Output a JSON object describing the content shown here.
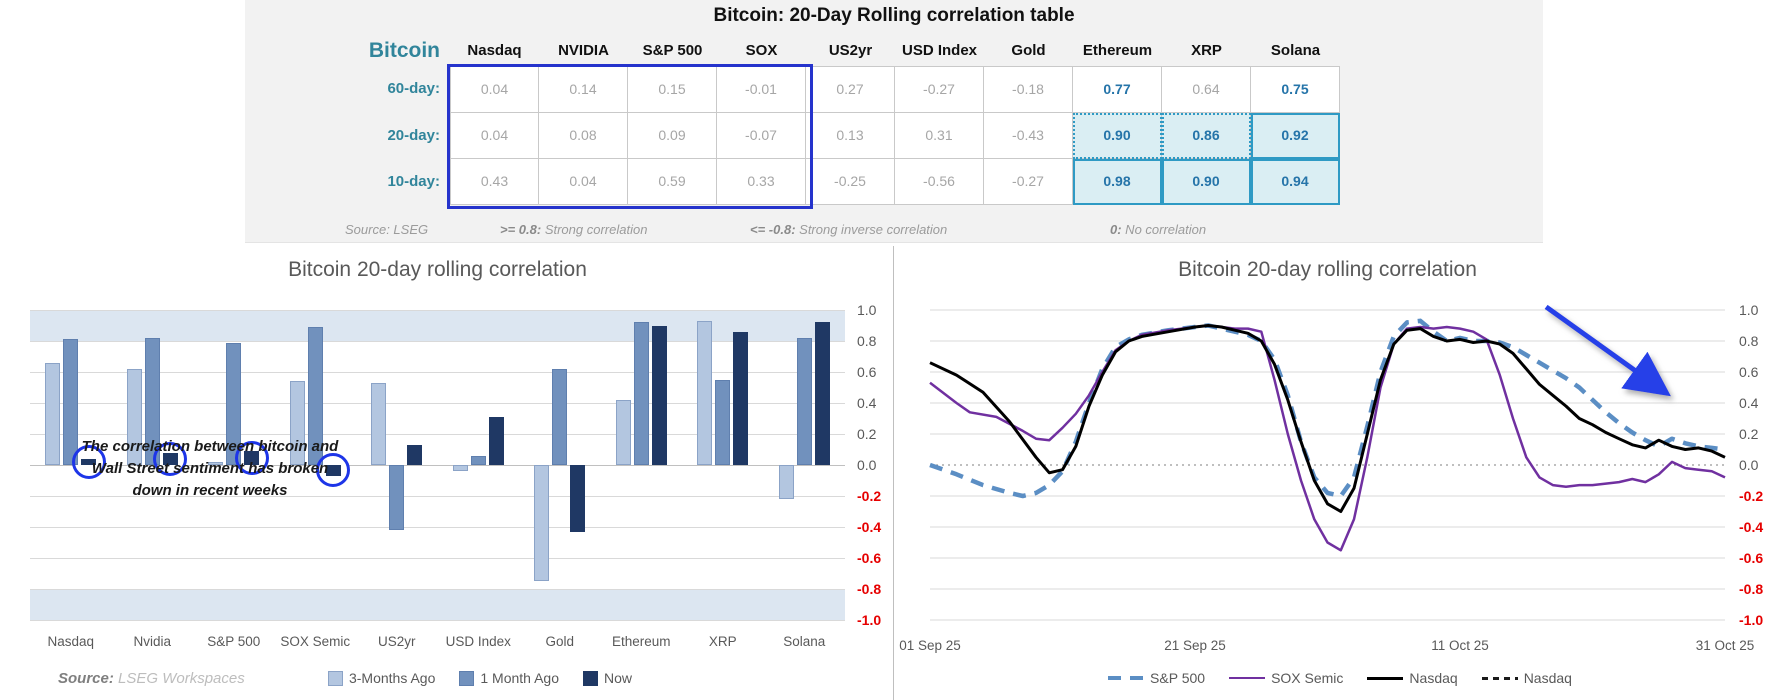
{
  "colors": {
    "panel_bg": "#f2f2f2",
    "teal_header": "#31859b",
    "value_gray": "#a6a6a6",
    "value_blue": "#2574a9",
    "highlight_fill": "#daeef3",
    "highlight_border": "#2e9ac4",
    "blue_box": "#2533cc",
    "band_fill": "#dce6f1",
    "gridline": "#d9d9d9",
    "axis_text": "#595959",
    "negative_red": "#e60000",
    "circle_blue": "#1d35e8",
    "arrow_blue": "#2540e8"
  },
  "table": {
    "title": "Bitcoin: 20-Day Rolling correlation table",
    "corner_label": "Bitcoin",
    "columns": [
      "Nasdaq",
      "NVIDIA",
      "S&P 500",
      "SOX",
      "US2yr",
      "USD Index",
      "Gold",
      "Ethereum",
      "XRP",
      "Solana"
    ],
    "crypto_start_index": 7,
    "rows": [
      {
        "label": "60-day:",
        "values": [
          "0.04",
          "0.14",
          "0.15",
          "-0.01",
          "0.27",
          "-0.27",
          "-0.18",
          "0.77",
          "0.64",
          "0.75"
        ]
      },
      {
        "label": "20-day:",
        "values": [
          "0.04",
          "0.08",
          "0.09",
          "-0.07",
          "0.13",
          "0.31",
          "-0.43",
          "0.90",
          "0.86",
          "0.92"
        ]
      },
      {
        "label": "10-day:",
        "values": [
          "0.43",
          "0.04",
          "0.59",
          "0.33",
          "-0.25",
          "-0.56",
          "-0.27",
          "0.98",
          "0.90",
          "0.94"
        ]
      }
    ],
    "footer": {
      "source": "Source: LSEG",
      "items": [
        {
          "strong": ">= 0.8:",
          "rest": " Strong correlation"
        },
        {
          "strong": "<= -0.8:",
          "rest": " Strong inverse correlation"
        },
        {
          "strong": "0:",
          "rest": " No correlation"
        }
      ]
    }
  },
  "chart_data": [
    {
      "type": "bar",
      "title": "Bitcoin 20-day rolling correlation",
      "categories": [
        "Nasdaq",
        "Nvidia",
        "S&P 500",
        "SOX Semic",
        "US2yr",
        "USD Index",
        "Gold",
        "Ethereum",
        "XRP",
        "Solana"
      ],
      "series": [
        {
          "name": "3-Months Ago",
          "color": "#b3c6e0",
          "border": "#8ba3c7",
          "values": [
            0.66,
            0.62,
            0.02,
            0.54,
            0.53,
            -0.04,
            -0.75,
            0.42,
            0.93,
            -0.22
          ]
        },
        {
          "name": "1 Month Ago",
          "color": "#7191bd",
          "border": "#5f7fae",
          "values": [
            0.81,
            0.82,
            0.79,
            0.89,
            -0.42,
            0.06,
            0.62,
            0.92,
            0.55,
            0.82
          ]
        },
        {
          "name": "Now",
          "color": "#1f3864",
          "border": "#1f3864",
          "values": [
            0.04,
            0.08,
            0.09,
            -0.07,
            0.13,
            0.31,
            -0.43,
            0.9,
            0.86,
            0.92
          ]
        }
      ],
      "ylim": [
        -1,
        1
      ],
      "yticks": [
        "1.0",
        "0.8",
        "0.6",
        "0.4",
        "0.2",
        "0.0",
        "-0.2",
        "-0.4",
        "-0.6",
        "-0.8",
        "-1.0"
      ],
      "band_ranges": [
        [
          0.8,
          1.0
        ],
        [
          -1.0,
          -0.8
        ]
      ],
      "circled_now_groups": [
        0,
        1,
        2,
        3
      ],
      "annotation": [
        "The correlation between bitcoin and",
        "Wall Street sentiment has broken",
        "down in recent weeks"
      ],
      "legend_position": "bottom",
      "source_label": "Source:",
      "source_text": "LSEG Workspaces"
    },
    {
      "type": "line",
      "title": "Bitcoin 20-day rolling correlation",
      "x_axis": {
        "labels": [
          "01 Sep 25",
          "21 Sep 25",
          "11 Oct 25",
          "31 Oct 25"
        ],
        "range_days": [
          0,
          60
        ]
      },
      "ylim": [
        -1,
        1
      ],
      "yticks": [
        "1.0",
        "0.8",
        "0.6",
        "0.4",
        "0.2",
        "0.0",
        "-0.2",
        "-0.4",
        "-0.6",
        "-0.8",
        "-1.0"
      ],
      "zero_line": "dotted",
      "legend_position": "bottom",
      "series": [
        {
          "name": "S&P 500",
          "color": "#5b8ec4",
          "dash": "13 9",
          "width": 4.5,
          "points": [
            [
              0,
              0.0
            ],
            [
              2,
              -0.06
            ],
            [
              4,
              -0.13
            ],
            [
              6,
              -0.18
            ],
            [
              7,
              -0.2
            ],
            [
              8,
              -0.18
            ],
            [
              9,
              -0.13
            ],
            [
              10,
              -0.04
            ],
            [
              11,
              0.15
            ],
            [
              12,
              0.4
            ],
            [
              13,
              0.62
            ],
            [
              14,
              0.76
            ],
            [
              15,
              0.81
            ],
            [
              16,
              0.84
            ],
            [
              18,
              0.87
            ],
            [
              20,
              0.89
            ],
            [
              21,
              0.9
            ],
            [
              22,
              0.88
            ],
            [
              23,
              0.86
            ],
            [
              24,
              0.84
            ],
            [
              25,
              0.8
            ],
            [
              26,
              0.68
            ],
            [
              27,
              0.45
            ],
            [
              28,
              0.15
            ],
            [
              29,
              -0.08
            ],
            [
              30,
              -0.18
            ],
            [
              31,
              -0.2
            ],
            [
              32,
              -0.08
            ],
            [
              33,
              0.25
            ],
            [
              34,
              0.6
            ],
            [
              35,
              0.83
            ],
            [
              36,
              0.92
            ],
            [
              37,
              0.93
            ],
            [
              38,
              0.86
            ],
            [
              39,
              0.8
            ],
            [
              40,
              0.82
            ],
            [
              41,
              0.8
            ],
            [
              42,
              0.8
            ],
            [
              43,
              0.79
            ],
            [
              44,
              0.76
            ],
            [
              45,
              0.71
            ],
            [
              46,
              0.66
            ],
            [
              47,
              0.61
            ],
            [
              48,
              0.56
            ],
            [
              49,
              0.5
            ],
            [
              50,
              0.42
            ],
            [
              51,
              0.34
            ],
            [
              52,
              0.27
            ],
            [
              53,
              0.21
            ],
            [
              54,
              0.16
            ],
            [
              55,
              0.12
            ],
            [
              56,
              0.17
            ],
            [
              57,
              0.14
            ],
            [
              58,
              0.12
            ],
            [
              59,
              0.11
            ],
            [
              60,
              0.1
            ]
          ]
        },
        {
          "name": "SOX Semic",
          "color": "#7030a0",
          "dash": "",
          "width": 2.5,
          "points": [
            [
              0,
              0.53
            ],
            [
              2,
              0.4
            ],
            [
              3,
              0.34
            ],
            [
              5,
              0.31
            ],
            [
              7,
              0.22
            ],
            [
              8,
              0.17
            ],
            [
              9,
              0.16
            ],
            [
              10,
              0.24
            ],
            [
              11,
              0.33
            ],
            [
              12,
              0.45
            ],
            [
              13,
              0.6
            ],
            [
              14,
              0.74
            ],
            [
              15,
              0.8
            ],
            [
              16,
              0.84
            ],
            [
              18,
              0.87
            ],
            [
              20,
              0.89
            ],
            [
              21,
              0.9
            ],
            [
              22,
              0.89
            ],
            [
              23,
              0.88
            ],
            [
              24,
              0.88
            ],
            [
              25,
              0.86
            ],
            [
              26,
              0.55
            ],
            [
              27,
              0.2
            ],
            [
              28,
              -0.1
            ],
            [
              29,
              -0.35
            ],
            [
              30,
              -0.5
            ],
            [
              31,
              -0.55
            ],
            [
              32,
              -0.35
            ],
            [
              33,
              0.05
            ],
            [
              34,
              0.5
            ],
            [
              35,
              0.78
            ],
            [
              36,
              0.88
            ],
            [
              37,
              0.89
            ],
            [
              38,
              0.88
            ],
            [
              39,
              0.89
            ],
            [
              40,
              0.88
            ],
            [
              41,
              0.86
            ],
            [
              42,
              0.81
            ],
            [
              43,
              0.58
            ],
            [
              44,
              0.3
            ],
            [
              45,
              0.05
            ],
            [
              46,
              -0.08
            ],
            [
              47,
              -0.13
            ],
            [
              48,
              -0.14
            ],
            [
              49,
              -0.13
            ],
            [
              50,
              -0.13
            ],
            [
              51,
              -0.12
            ],
            [
              52,
              -0.11
            ],
            [
              53,
              -0.09
            ],
            [
              54,
              -0.11
            ],
            [
              55,
              -0.06
            ],
            [
              56,
              0.02
            ],
            [
              57,
              -0.02
            ],
            [
              58,
              -0.03
            ],
            [
              59,
              -0.04
            ],
            [
              60,
              -0.08
            ]
          ]
        },
        {
          "name": "Nasdaq",
          "color": "#000000",
          "dash": "",
          "width": 3,
          "points": [
            [
              0,
              0.66
            ],
            [
              2,
              0.58
            ],
            [
              4,
              0.47
            ],
            [
              6,
              0.28
            ],
            [
              8,
              0.05
            ],
            [
              9,
              -0.05
            ],
            [
              10,
              -0.03
            ],
            [
              11,
              0.12
            ],
            [
              12,
              0.38
            ],
            [
              13,
              0.58
            ],
            [
              14,
              0.73
            ],
            [
              15,
              0.8
            ],
            [
              16,
              0.83
            ],
            [
              18,
              0.86
            ],
            [
              20,
              0.89
            ],
            [
              21,
              0.9
            ],
            [
              22,
              0.89
            ],
            [
              23,
              0.87
            ],
            [
              24,
              0.85
            ],
            [
              25,
              0.8
            ],
            [
              26,
              0.65
            ],
            [
              27,
              0.42
            ],
            [
              28,
              0.15
            ],
            [
              29,
              -0.1
            ],
            [
              30,
              -0.25
            ],
            [
              31,
              -0.3
            ],
            [
              32,
              -0.15
            ],
            [
              33,
              0.2
            ],
            [
              34,
              0.55
            ],
            [
              35,
              0.78
            ],
            [
              36,
              0.87
            ],
            [
              37,
              0.88
            ],
            [
              38,
              0.83
            ],
            [
              39,
              0.8
            ],
            [
              40,
              0.81
            ],
            [
              41,
              0.79
            ],
            [
              42,
              0.8
            ],
            [
              43,
              0.78
            ],
            [
              44,
              0.72
            ],
            [
              45,
              0.62
            ],
            [
              46,
              0.52
            ],
            [
              47,
              0.45
            ],
            [
              48,
              0.38
            ],
            [
              49,
              0.3
            ],
            [
              50,
              0.26
            ],
            [
              51,
              0.21
            ],
            [
              52,
              0.17
            ],
            [
              53,
              0.13
            ],
            [
              54,
              0.11
            ],
            [
              55,
              0.16
            ],
            [
              56,
              0.12
            ],
            [
              57,
              0.1
            ],
            [
              58,
              0.11
            ],
            [
              59,
              0.09
            ],
            [
              60,
              0.05
            ]
          ]
        },
        {
          "name": "Nasdaq",
          "color": "#1a1a1a",
          "dash": "6 5",
          "width": 3,
          "points": []
        }
      ],
      "arrow": {
        "from": [
          46.5,
          1.02
        ],
        "to": [
          55,
          0.5
        ],
        "color": "#2540e8"
      }
    }
  ]
}
